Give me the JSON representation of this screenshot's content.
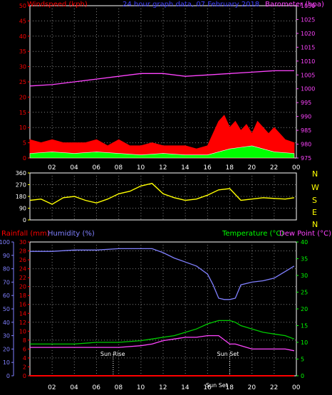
{
  "chart_data": [
    {
      "id": "wind-baro",
      "type": "line",
      "title": "24 hour graph data, 07 February 2018",
      "left_axis": {
        "label": "Windspeed (kph)",
        "min": 0,
        "max": 50,
        "ticks": [
          0,
          5,
          10,
          15,
          20,
          25,
          30,
          35,
          40,
          45,
          50
        ]
      },
      "right_axis": {
        "label": "Barometer (hpa)",
        "min": 975,
        "max": 1030,
        "ticks": [
          975,
          980,
          985,
          990,
          995,
          1000,
          1005,
          1010,
          1015,
          1020,
          1025,
          1030
        ]
      },
      "x_ticks": [
        "02",
        "04",
        "06",
        "08",
        "10",
        "12",
        "14",
        "16",
        "18",
        "20",
        "22",
        "00"
      ],
      "grid": true,
      "series": [
        {
          "name": "Barometer",
          "color": "#ff44ff",
          "axis": "right",
          "x": [
            0,
            2,
            4,
            6,
            8,
            10,
            12,
            14,
            16,
            18,
            20,
            22,
            23.8
          ],
          "values": [
            1001,
            1001.5,
            1002.5,
            1003.5,
            1004.5,
            1005.5,
            1005.5,
            1004.5,
            1005,
            1005.5,
            1006,
            1006.5,
            1006.5
          ]
        },
        {
          "name": "Gust",
          "color": "#ff0000",
          "axis": "left",
          "x": [
            0,
            1,
            2,
            3,
            4,
            5,
            6,
            7,
            8,
            9,
            10,
            11,
            12,
            13,
            14,
            15,
            16,
            16.5,
            17,
            17.5,
            18,
            18.5,
            19,
            19.5,
            20,
            20.5,
            21,
            21.5,
            22,
            23,
            23.8
          ],
          "values": [
            6,
            5,
            6,
            5,
            5,
            5,
            6,
            4,
            6,
            4,
            4,
            5,
            4,
            4,
            4,
            3,
            4,
            8,
            12,
            14,
            10,
            12,
            9,
            11,
            8,
            12,
            10,
            8,
            10,
            6,
            5
          ]
        },
        {
          "name": "Wind",
          "color": "#00ff00",
          "axis": "left",
          "x": [
            0,
            2,
            4,
            6,
            8,
            10,
            12,
            14,
            16,
            17,
            18,
            19,
            20,
            21,
            22,
            23.8
          ],
          "values": [
            1.5,
            2,
            1.5,
            2,
            1.5,
            1,
            1.5,
            1,
            1,
            2,
            3,
            3.5,
            4,
            3,
            2,
            1.5
          ]
        }
      ]
    },
    {
      "id": "direction",
      "type": "line",
      "left_axis": {
        "min": 0,
        "max": 360,
        "ticks": [
          0,
          90,
          180,
          270,
          360
        ]
      },
      "compass": [
        "N",
        "W",
        "S",
        "E",
        "N"
      ],
      "grid": true,
      "series": [
        {
          "name": "Direction",
          "color": "#ffff00",
          "x": [
            0,
            1,
            2,
            3,
            4,
            5,
            6,
            7,
            8,
            9,
            10,
            11,
            12,
            13,
            14,
            15,
            16,
            17,
            18,
            19,
            20,
            21,
            22,
            23,
            23.8
          ],
          "values": [
            150,
            160,
            120,
            170,
            180,
            150,
            130,
            160,
            200,
            220,
            260,
            280,
            200,
            170,
            150,
            160,
            190,
            230,
            240,
            150,
            160,
            170,
            165,
            160,
            170
          ]
        }
      ]
    },
    {
      "id": "temp-hum",
      "type": "line",
      "left_label_rain": "Rainfall (mm)",
      "left_label_hum": "Humidity (%)",
      "right_label_temp": "Temperature (°C)",
      "right_label_dew": "Dew Point (°C)",
      "humidity_axis": {
        "min": 0,
        "max": 100,
        "ticks": [
          0,
          10,
          20,
          30,
          40,
          50,
          60,
          70,
          80,
          90,
          100
        ]
      },
      "rain_axis": {
        "min": 0,
        "max": 30,
        "ticks": [
          0,
          2,
          4,
          6,
          8,
          10,
          12,
          14,
          16,
          18,
          20,
          22,
          24,
          26,
          28,
          30
        ]
      },
      "temp_axis": {
        "min": 0,
        "max": 40,
        "ticks": [
          0,
          5,
          10,
          15,
          20,
          25,
          30,
          35,
          40
        ]
      },
      "x_ticks": [
        "02",
        "04",
        "06",
        "08",
        "10",
        "12",
        "14",
        "16",
        "18",
        "20",
        "22",
        "00"
      ],
      "annotations": [
        {
          "label": "Sun Rise",
          "x": 7.5
        },
        {
          "label": "Sun Set",
          "x": 18
        },
        {
          "label": "Sun Set",
          "x": 17.9
        }
      ],
      "grid": true,
      "series": [
        {
          "name": "Humidity",
          "color": "#8080ff",
          "axis": "humidity",
          "x": [
            0,
            2,
            4,
            6,
            8,
            10,
            11,
            12,
            13,
            14,
            15,
            16,
            16.5,
            17,
            17.5,
            18,
            18.5,
            19,
            20,
            21,
            22,
            23,
            23.8
          ],
          "values": [
            93,
            93,
            94,
            94,
            95,
            95,
            95,
            92,
            88,
            85,
            82,
            76,
            68,
            58,
            57,
            57,
            58,
            68,
            70,
            71,
            73,
            78,
            82
          ]
        },
        {
          "name": "Temperature",
          "color": "#00cc00",
          "axis": "temp",
          "x": [
            0,
            2,
            4,
            6,
            8,
            10,
            11,
            12,
            13,
            14,
            15,
            16,
            17,
            18,
            18.5,
            19,
            20,
            21,
            22,
            23,
            23.8
          ],
          "values": [
            9.5,
            9.5,
            9.5,
            10,
            10,
            10.5,
            11,
            11.5,
            12,
            13,
            14,
            15.5,
            16.5,
            16.5,
            16,
            15,
            14,
            13,
            12.5,
            12,
            11
          ]
        },
        {
          "name": "Dew Point",
          "color": "#ff44ff",
          "axis": "temp",
          "x": [
            0,
            2,
            4,
            6,
            8,
            10,
            11,
            12,
            13,
            14,
            15,
            16,
            17,
            18,
            18.5,
            19,
            20,
            21,
            22,
            23,
            23.8
          ],
          "values": [
            8.5,
            8.5,
            8.5,
            8.5,
            8.5,
            9,
            9.5,
            10.5,
            11,
            11.5,
            11.5,
            12,
            12,
            9.5,
            9.5,
            9,
            8,
            8,
            8,
            8,
            7.5
          ]
        },
        {
          "name": "Rainfall",
          "color": "#ff0000",
          "axis": "rain",
          "x": [
            0,
            23.8
          ],
          "values": [
            0,
            0
          ]
        }
      ]
    }
  ]
}
